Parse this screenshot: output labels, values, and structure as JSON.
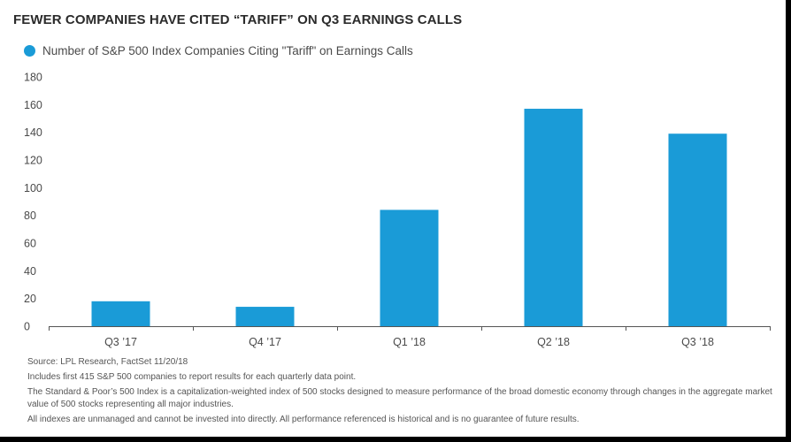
{
  "title": "FEWER COMPANIES HAVE CITED “TARIFF” ON Q3 EARNINGS CALLS",
  "legend": {
    "label": "Number of S&P 500 Index Companies Citing \"Tariff\" on Earnings Calls",
    "color": "#1a9bd7"
  },
  "chart_data": {
    "type": "bar",
    "categories": [
      "Q3 ’17",
      "Q4 ’17",
      "Q1 ’18",
      "Q2 ’18",
      "Q3 ’18"
    ],
    "series": [
      {
        "name": "Number of S&P 500 Index Companies Citing \"Tariff\" on Earnings Calls",
        "values": [
          18,
          14,
          84,
          157,
          139
        ],
        "color": "#1a9bd7"
      }
    ],
    "ylim": [
      0,
      180
    ],
    "yticks": [
      0,
      20,
      40,
      60,
      80,
      100,
      120,
      140,
      160,
      180
    ],
    "grid": false,
    "legend_position": "top-left"
  },
  "notes": {
    "source": "Source: LPL Research, FactSet   11/20/18",
    "includes": "Includes first 415 S&P 500 companies to report results for each quarterly data point.",
    "sp500": "The Standard & Poor’s 500 Index is a capitalization-weighted index of 500 stocks designed to measure performance of the broad domestic economy through changes in the aggregate market value of 500 stocks representing all major industries.",
    "disclaimer": "All indexes are unmanaged and cannot be invested into directly. All performance referenced is historical and is no guarantee of future results."
  }
}
